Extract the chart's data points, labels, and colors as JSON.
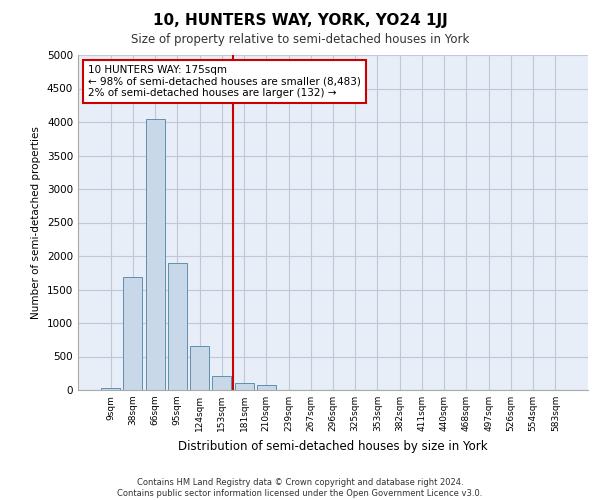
{
  "title": "10, HUNTERS WAY, YORK, YO24 1JJ",
  "subtitle": "Size of property relative to semi-detached houses in York",
  "xlabel": "Distribution of semi-detached houses by size in York",
  "ylabel": "Number of semi-detached properties",
  "categories": [
    "9sqm",
    "38sqm",
    "66sqm",
    "95sqm",
    "124sqm",
    "153sqm",
    "181sqm",
    "210sqm",
    "239sqm",
    "267sqm",
    "296sqm",
    "325sqm",
    "353sqm",
    "382sqm",
    "411sqm",
    "440sqm",
    "468sqm",
    "497sqm",
    "526sqm",
    "554sqm",
    "583sqm"
  ],
  "values": [
    30,
    1680,
    4050,
    1900,
    660,
    215,
    100,
    80,
    0,
    0,
    0,
    0,
    0,
    0,
    0,
    0,
    0,
    0,
    0,
    0,
    0
  ],
  "bar_color": "#c8d8e8",
  "bar_edge_color": "#6090b0",
  "vline_x": 6.0,
  "vline_color": "#cc0000",
  "annotation_text": "10 HUNTERS WAY: 175sqm\n← 98% of semi-detached houses are smaller (8,483)\n2% of semi-detached houses are larger (132) →",
  "annotation_box_color": "#ffffff",
  "annotation_box_edge_color": "#cc0000",
  "ylim": [
    0,
    5000
  ],
  "yticks": [
    0,
    500,
    1000,
    1500,
    2000,
    2500,
    3000,
    3500,
    4000,
    4500,
    5000
  ],
  "grid_color": "#c0c8d8",
  "bg_color": "#e8eef8",
  "footer": "Contains HM Land Registry data © Crown copyright and database right 2024.\nContains public sector information licensed under the Open Government Licence v3.0."
}
